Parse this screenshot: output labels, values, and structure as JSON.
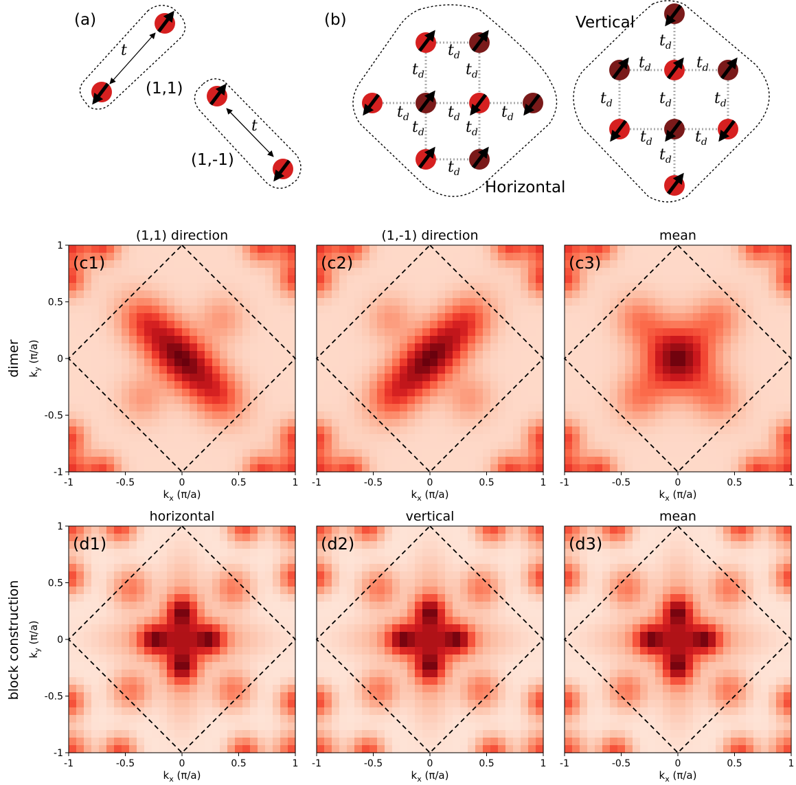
{
  "panel_a": {
    "letter": "(a)",
    "hop_label": "t",
    "dimer1_label": "(1,1)",
    "dimer2_label": "(1,-1)"
  },
  "panel_b": {
    "letter": "(b)",
    "hop_label_base": "t",
    "hop_label_sub": "d",
    "horizontal_label": "Horizontal",
    "vertical_label": "Vertical"
  },
  "row_labels": {
    "c": "dimer",
    "d": "block construction"
  },
  "colors": {
    "site_red": "#d62020",
    "site_dark": "#7a1a1a",
    "arrow": "#000000",
    "bz_line": "#000000",
    "heatmap_low": "#fff5f0",
    "heatmap_high": "#67000d"
  },
  "axes": {
    "xlabel": "k",
    "xlabel_sub": "x",
    "xlabel_unit": " (π/a)",
    "ylabel": "k",
    "ylabel_sub": "y",
    "ylabel_unit": " (π/a)",
    "xtick_labels": [
      "-1",
      "-0.5",
      "0",
      "0.5",
      "1"
    ],
    "ytick_labels": [
      "1",
      "0.5",
      "0",
      "-0.5",
      "-1"
    ]
  },
  "chart_data": [
    {
      "type": "heatmap",
      "panel": "(c1)",
      "title": "(1,1) direction",
      "x_range": [
        -1,
        1
      ],
      "y_range": [
        -1,
        1
      ],
      "colormap": "Reds",
      "peak_at": [
        0,
        0
      ],
      "elongation": "(1,-1)",
      "bz_boundary": "|kx|+|ky|=1"
    },
    {
      "type": "heatmap",
      "panel": "(c2)",
      "title": "(1,-1) direction",
      "x_range": [
        -1,
        1
      ],
      "y_range": [
        -1,
        1
      ],
      "colormap": "Reds",
      "peak_at": [
        0,
        0
      ],
      "elongation": "(1,1)",
      "bz_boundary": "|kx|+|ky|=1"
    },
    {
      "type": "heatmap",
      "panel": "(c3)",
      "title": "mean",
      "x_range": [
        -1,
        1
      ],
      "y_range": [
        -1,
        1
      ],
      "colormap": "Reds",
      "peak_at": [
        0,
        0
      ],
      "elongation": "none",
      "bz_boundary": "|kx|+|ky|=1"
    },
    {
      "type": "heatmap",
      "panel": "(d1)",
      "title": "horizontal",
      "x_range": [
        -1,
        1
      ],
      "y_range": [
        -1,
        1
      ],
      "colormap": "Reds",
      "peaks_at": [
        [
          0.25,
          0
        ],
        [
          -0.25,
          0
        ],
        [
          0,
          0.25
        ],
        [
          0,
          -0.25
        ]
      ],
      "bz_boundary": "|kx|+|ky|=1"
    },
    {
      "type": "heatmap",
      "panel": "(d2)",
      "title": "vertical",
      "x_range": [
        -1,
        1
      ],
      "y_range": [
        -1,
        1
      ],
      "colormap": "Reds",
      "peaks_at": [
        [
          0.25,
          0
        ],
        [
          -0.25,
          0
        ],
        [
          0,
          0.25
        ],
        [
          0,
          -0.25
        ]
      ],
      "bz_boundary": "|kx|+|ky|=1"
    },
    {
      "type": "heatmap",
      "panel": "(d3)",
      "title": "mean",
      "x_range": [
        -1,
        1
      ],
      "y_range": [
        -1,
        1
      ],
      "colormap": "Reds",
      "peaks_at": [
        [
          0.25,
          0
        ],
        [
          -0.25,
          0
        ],
        [
          0,
          0.25
        ],
        [
          0,
          -0.25
        ]
      ],
      "bz_boundary": "|kx|+|ky|=1"
    }
  ]
}
